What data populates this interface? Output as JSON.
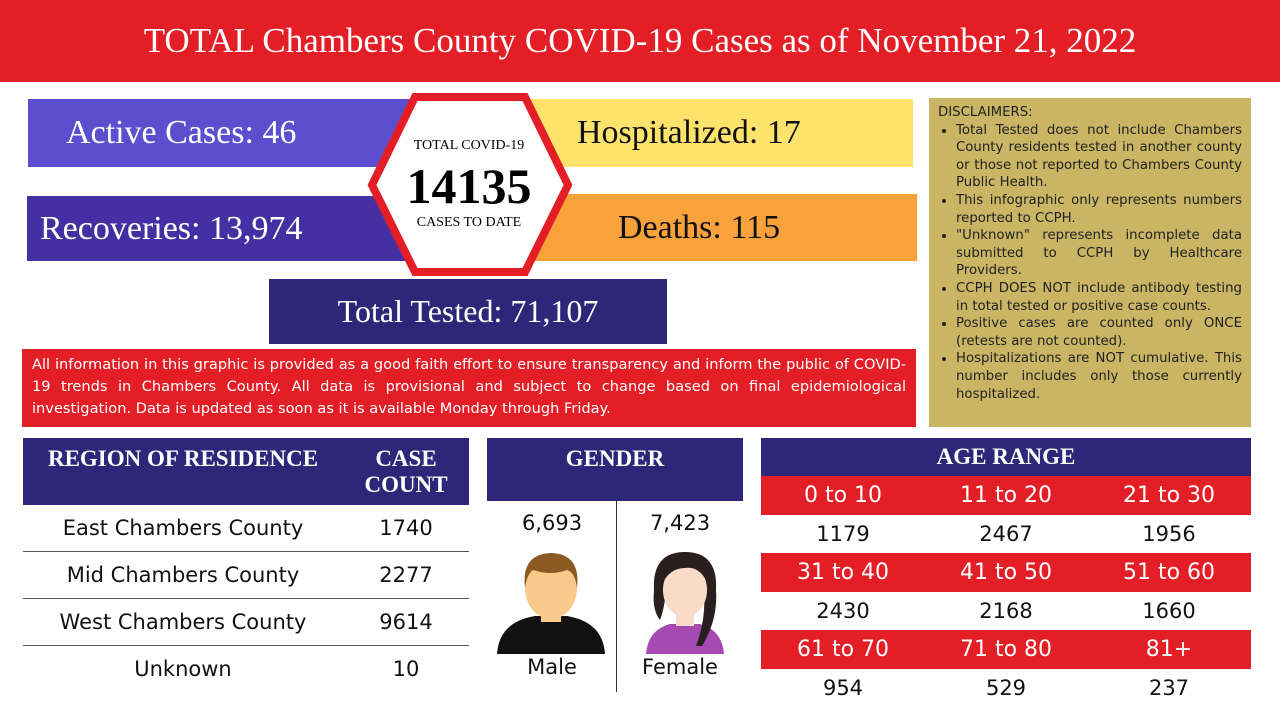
{
  "header": {
    "title": "TOTAL Chambers County COVID-19 Cases as of November 21, 2022"
  },
  "stats": {
    "active": "Active Cases: 46",
    "hospitalized": "Hospitalized: 17",
    "recoveries": "Recoveries: 13,974",
    "deaths": "Deaths: 115",
    "tested": "Total Tested: 71,107"
  },
  "total": {
    "label_top": "TOTAL COVID-19",
    "value": "14135",
    "label_bottom": "CASES TO DATE"
  },
  "notice": "All information in this graphic is provided as a good faith effort to ensure transparency and inform the public of COVID-19 trends in Chambers County. All data is provisional and subject to change based on final epidemiological investigation.  Data is updated as soon as it is available Monday through Friday.",
  "disclaimers": {
    "title": "DISCLAIMERS:",
    "items": [
      "Total Tested does not include Chambers County residents tested in another county or those not reported to Chambers County Public Health.",
      "This infographic only represents numbers reported to CCPH.",
      "\"Unknown\" represents incomplete data submitted to CCPH by Healthcare Providers.",
      "CCPH DOES NOT include antibody testing in total tested or positive case counts.",
      "Positive cases are counted only ONCE (retests are not counted).",
      "Hospitalizations are NOT cumulative. This number includes only those currently hospitalized."
    ]
  },
  "region": {
    "headers": [
      "REGION OF RESIDENCE",
      "CASE COUNT"
    ],
    "rows": [
      [
        "East Chambers County",
        "1740"
      ],
      [
        "Mid Chambers County",
        "2277"
      ],
      [
        "West Chambers County",
        "9614"
      ],
      [
        "Unknown",
        "10"
      ]
    ]
  },
  "gender": {
    "title": "GENDER",
    "male": {
      "count": "6,693",
      "label": "Male"
    },
    "female": {
      "count": "7,423",
      "label": "Female"
    }
  },
  "age": {
    "title": "AGE RANGE",
    "rows": [
      {
        "ranges": [
          "0 to 10",
          "11 to 20",
          "21 to 30"
        ],
        "counts": [
          "1179",
          "2467",
          "1956"
        ]
      },
      {
        "ranges": [
          "31 to 40",
          "41 to 50",
          "51 to 60"
        ],
        "counts": [
          "2430",
          "2168",
          "1660"
        ]
      },
      {
        "ranges": [
          "61 to 70",
          "71 to 80",
          "81+"
        ],
        "counts": [
          "954",
          "529",
          "237"
        ]
      }
    ]
  }
}
